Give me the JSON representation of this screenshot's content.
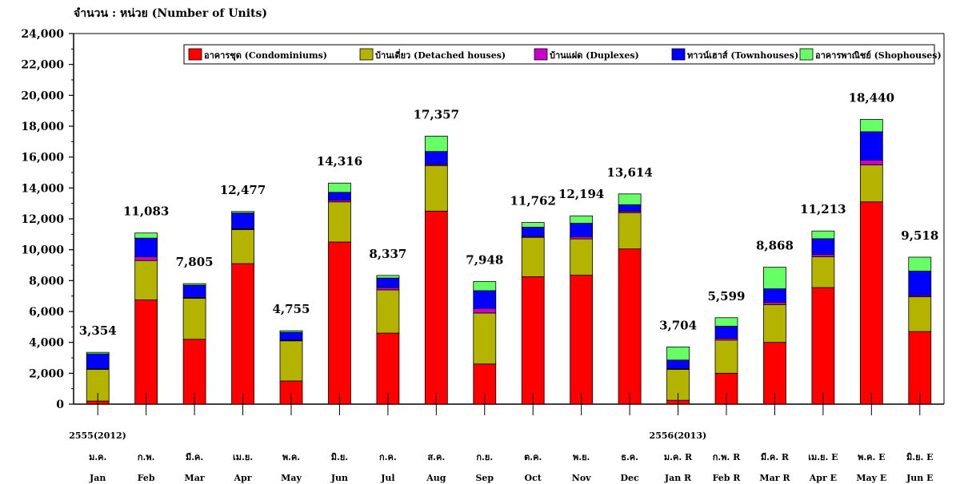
{
  "chart_data": {
    "type": "bar",
    "stacked": true,
    "title": "",
    "ylabel": "จำนวน : หน่วย (Number of Units)",
    "xlabel": "",
    "ylim": [
      0,
      24000
    ],
    "ytick_step": 2000,
    "legend_position": "top",
    "grid": false,
    "year_labels": [
      {
        "index": 0,
        "text": "2555(2012)"
      },
      {
        "index": 12,
        "text": "2556(2013)"
      }
    ],
    "categories_th": [
      "ม.ค.",
      "ก.พ.",
      "มี.ค.",
      "เม.ย.",
      "พ.ค.",
      "มิ.ย.",
      "ก.ค.",
      "ส.ค.",
      "ก.ย.",
      "ต.ค.",
      "พ.ย.",
      "ธ.ค.",
      "ม.ค. R",
      "ก.พ. R",
      "มี.ค. R",
      "เม.ย. E",
      "พ.ค. E",
      "มิ.ย. E"
    ],
    "categories": [
      "Jan",
      "Feb",
      "Mar",
      "Apr",
      "May",
      "Jun",
      "Jul",
      "Aug",
      "Sep",
      "Oct",
      "Nov",
      "Dec",
      "Jan R",
      "Feb R",
      "Mar R",
      "Apr E",
      "May E",
      "Jun E"
    ],
    "totals": [
      "3,354",
      "11,083",
      "7,805",
      "12,477",
      "4,755",
      "14,316",
      "8,337",
      "17,357",
      "7,948",
      "11,762",
      "12,194",
      "13,614",
      "3,704",
      "5,599",
      "8,868",
      "11,213",
      "18,440",
      "9,518"
    ],
    "series": [
      {
        "name": "อาคารชุด (Condominiums)",
        "color": "#ff0000",
        "values": [
          200,
          6750,
          4200,
          9100,
          1500,
          10500,
          4600,
          12500,
          2600,
          8250,
          8350,
          10050,
          250,
          2000,
          4000,
          7550,
          13100,
          4700
        ]
      },
      {
        "name": "บ้านเดี่ยว (Detached houses)",
        "color": "#b3b300",
        "values": [
          2050,
          2550,
          2650,
          2200,
          2600,
          2600,
          2800,
          2950,
          3300,
          2550,
          2350,
          2350,
          2000,
          2150,
          2450,
          2000,
          2400,
          2250
        ]
      },
      {
        "name": "บ้านแฝด (Duplexes)",
        "color": "#cc00cc",
        "values": [
          40,
          250,
          60,
          60,
          40,
          120,
          150,
          80,
          300,
          60,
          150,
          100,
          40,
          120,
          150,
          140,
          300,
          80
        ]
      },
      {
        "name": "ทาวน์เฮาส์ (Townhouses)",
        "color": "#0000ff",
        "values": [
          964,
          1200,
          795,
          1017,
          515,
          496,
          617,
          830,
          1148,
          602,
          864,
          414,
          564,
          779,
          868,
          1023,
          1840,
          1588
        ]
      },
      {
        "name": "อาคารพาณิชย์ (Shophouses)",
        "color": "#66ff66",
        "values": [
          100,
          333,
          100,
          100,
          100,
          600,
          170,
          997,
          600,
          300,
          480,
          700,
          850,
          550,
          1400,
          500,
          800,
          900
        ]
      }
    ]
  }
}
